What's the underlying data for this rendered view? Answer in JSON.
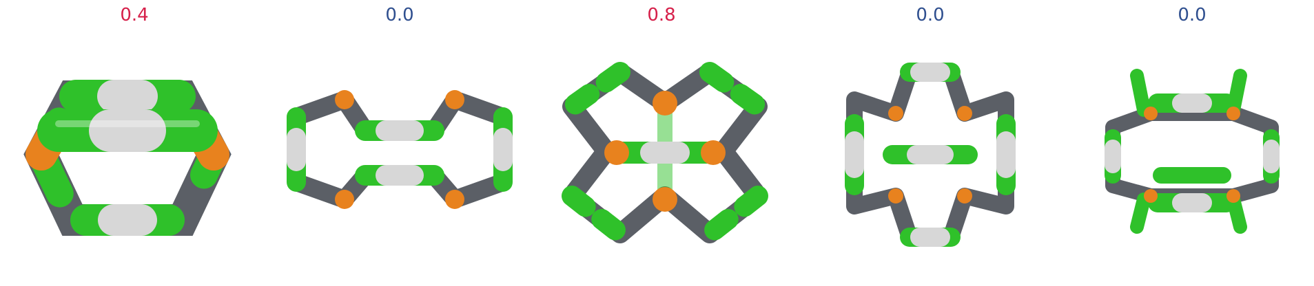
{
  "panels": [
    {
      "score": "0.4",
      "score_color": "#d6204a",
      "structure": "hexagonal-ring-molecule"
    },
    {
      "score": "0.0",
      "score_color": "#2f4f8f",
      "structure": "stacked-bridged-rings-molecule"
    },
    {
      "score": "0.8",
      "score_color": "#d6204a",
      "structure": "clover-cage-molecule"
    },
    {
      "score": "0.0",
      "score_color": "#2f4f8f",
      "structure": "bowl-cage-molecule"
    },
    {
      "score": "0.0",
      "score_color": "#2f4f8f",
      "structure": "double-deck-cage-molecule"
    }
  ],
  "colors": {
    "green": "#2fc12a",
    "grey": "#5b5f66",
    "white": "#d7d7d7",
    "orange": "#e8821e"
  }
}
